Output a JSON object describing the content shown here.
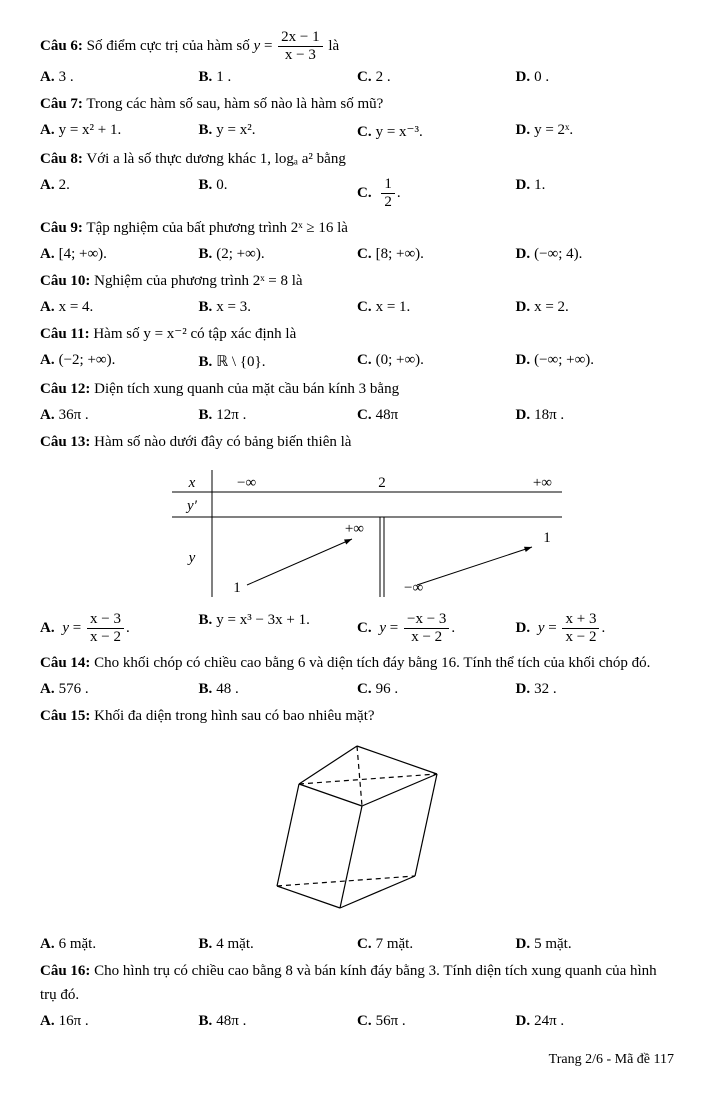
{
  "q6": {
    "label": "Câu 6:",
    "text_a": "Số điểm cực trị của hàm số ",
    "frac_num": "2x − 1",
    "frac_den": "x − 3",
    "text_b": " là",
    "A": "3 .",
    "B": "1 .",
    "C": "2 .",
    "D": "0 ."
  },
  "q7": {
    "label": "Câu 7:",
    "text": "Trong các hàm số sau, hàm số nào là hàm số mũ?",
    "A": "y = x² + 1.",
    "B": "y = x².",
    "C": "y = x⁻³.",
    "D": "y = 2ˣ."
  },
  "q8": {
    "label": "Câu 8:",
    "text": "Với a là số thực dương khác 1, logₐ a² bằng",
    "A": "2.",
    "B": "0.",
    "C_num": "1",
    "C_den": "2",
    "C_suffix": ".",
    "D": "1."
  },
  "q9": {
    "label": "Câu 9:",
    "text": "Tập nghiệm của bất phương trình  2ˣ ≥ 16  là",
    "A": "[4; +∞).",
    "B": "(2; +∞).",
    "C": "[8; +∞).",
    "D": "(−∞; 4)."
  },
  "q10": {
    "label": "Câu 10:",
    "text": "Nghiệm của phương trình  2ˣ = 8  là",
    "A": "x = 4.",
    "B": "x = 3.",
    "C": "x = 1.",
    "D": "x = 2."
  },
  "q11": {
    "label": "Câu 11:",
    "text": "Hàm số  y = x⁻²  có tập xác định là",
    "A": "(−2; +∞).",
    "B": "ℝ \\ {0}.",
    "C": "(0; +∞).",
    "D": "(−∞; +∞)."
  },
  "q12": {
    "label": "Câu 12:",
    "text": "Diện tích xung quanh của mặt cầu bán kính 3 bằng",
    "A": "36π .",
    "B": "12π .",
    "C": "48π",
    "D": "18π ."
  },
  "q13": {
    "label": "Câu 13:",
    "text": "Hàm số nào dưới đây có bảng biến thiên là",
    "table": {
      "x_labels": [
        "x",
        "−∞",
        "2",
        "+∞"
      ],
      "yprime_label": "y′",
      "y_label": "y",
      "y_top_center": "+∞",
      "y_bottom_left": "1",
      "y_right_mid": "1",
      "y_bottom_right": "−∞",
      "line_color": "#000000"
    },
    "A": {
      "num": "x − 3",
      "den": "x − 2",
      "suffix": "."
    },
    "B": "y = x³ − 3x + 1.",
    "C": {
      "num": "−x − 3",
      "den": "x − 2",
      "suffix": "."
    },
    "D": {
      "num": "x + 3",
      "den": "x − 2",
      "suffix": "."
    }
  },
  "q14": {
    "label": "Câu 14:",
    "text": "Cho khối chóp có chiều cao bằng 6 và diện tích đáy bằng 16. Tính thể tích của khối chóp đó.",
    "A": "576 .",
    "B": "48 .",
    "C": "96 .",
    "D": "32 ."
  },
  "q15": {
    "label": "Câu 15:",
    "text": "Khối đa diện trong hình sau có bao nhiêu mặt?",
    "poly": {
      "stroke": "#000000",
      "points": {
        "apex": [
          120,
          10
        ],
        "tl": [
          62,
          48
        ],
        "tr": [
          200,
          38
        ],
        "tm": [
          125,
          70
        ],
        "bl": [
          40,
          150
        ],
        "br": [
          178,
          140
        ],
        "bm": [
          103,
          172
        ]
      }
    },
    "A": "6 mặt.",
    "B": "4 mặt.",
    "C": "7 mặt.",
    "D": "5 mặt."
  },
  "q16": {
    "label": "Câu 16:",
    "text": "Cho hình trụ có chiều cao bằng 8 và bán kính đáy bằng 3. Tính diện tích xung quanh của hình trụ đó.",
    "A": "16π .",
    "B": "48π .",
    "C": "56π .",
    "D": "24π ."
  },
  "footer": "Trang 2/6 - Mã đề 117"
}
